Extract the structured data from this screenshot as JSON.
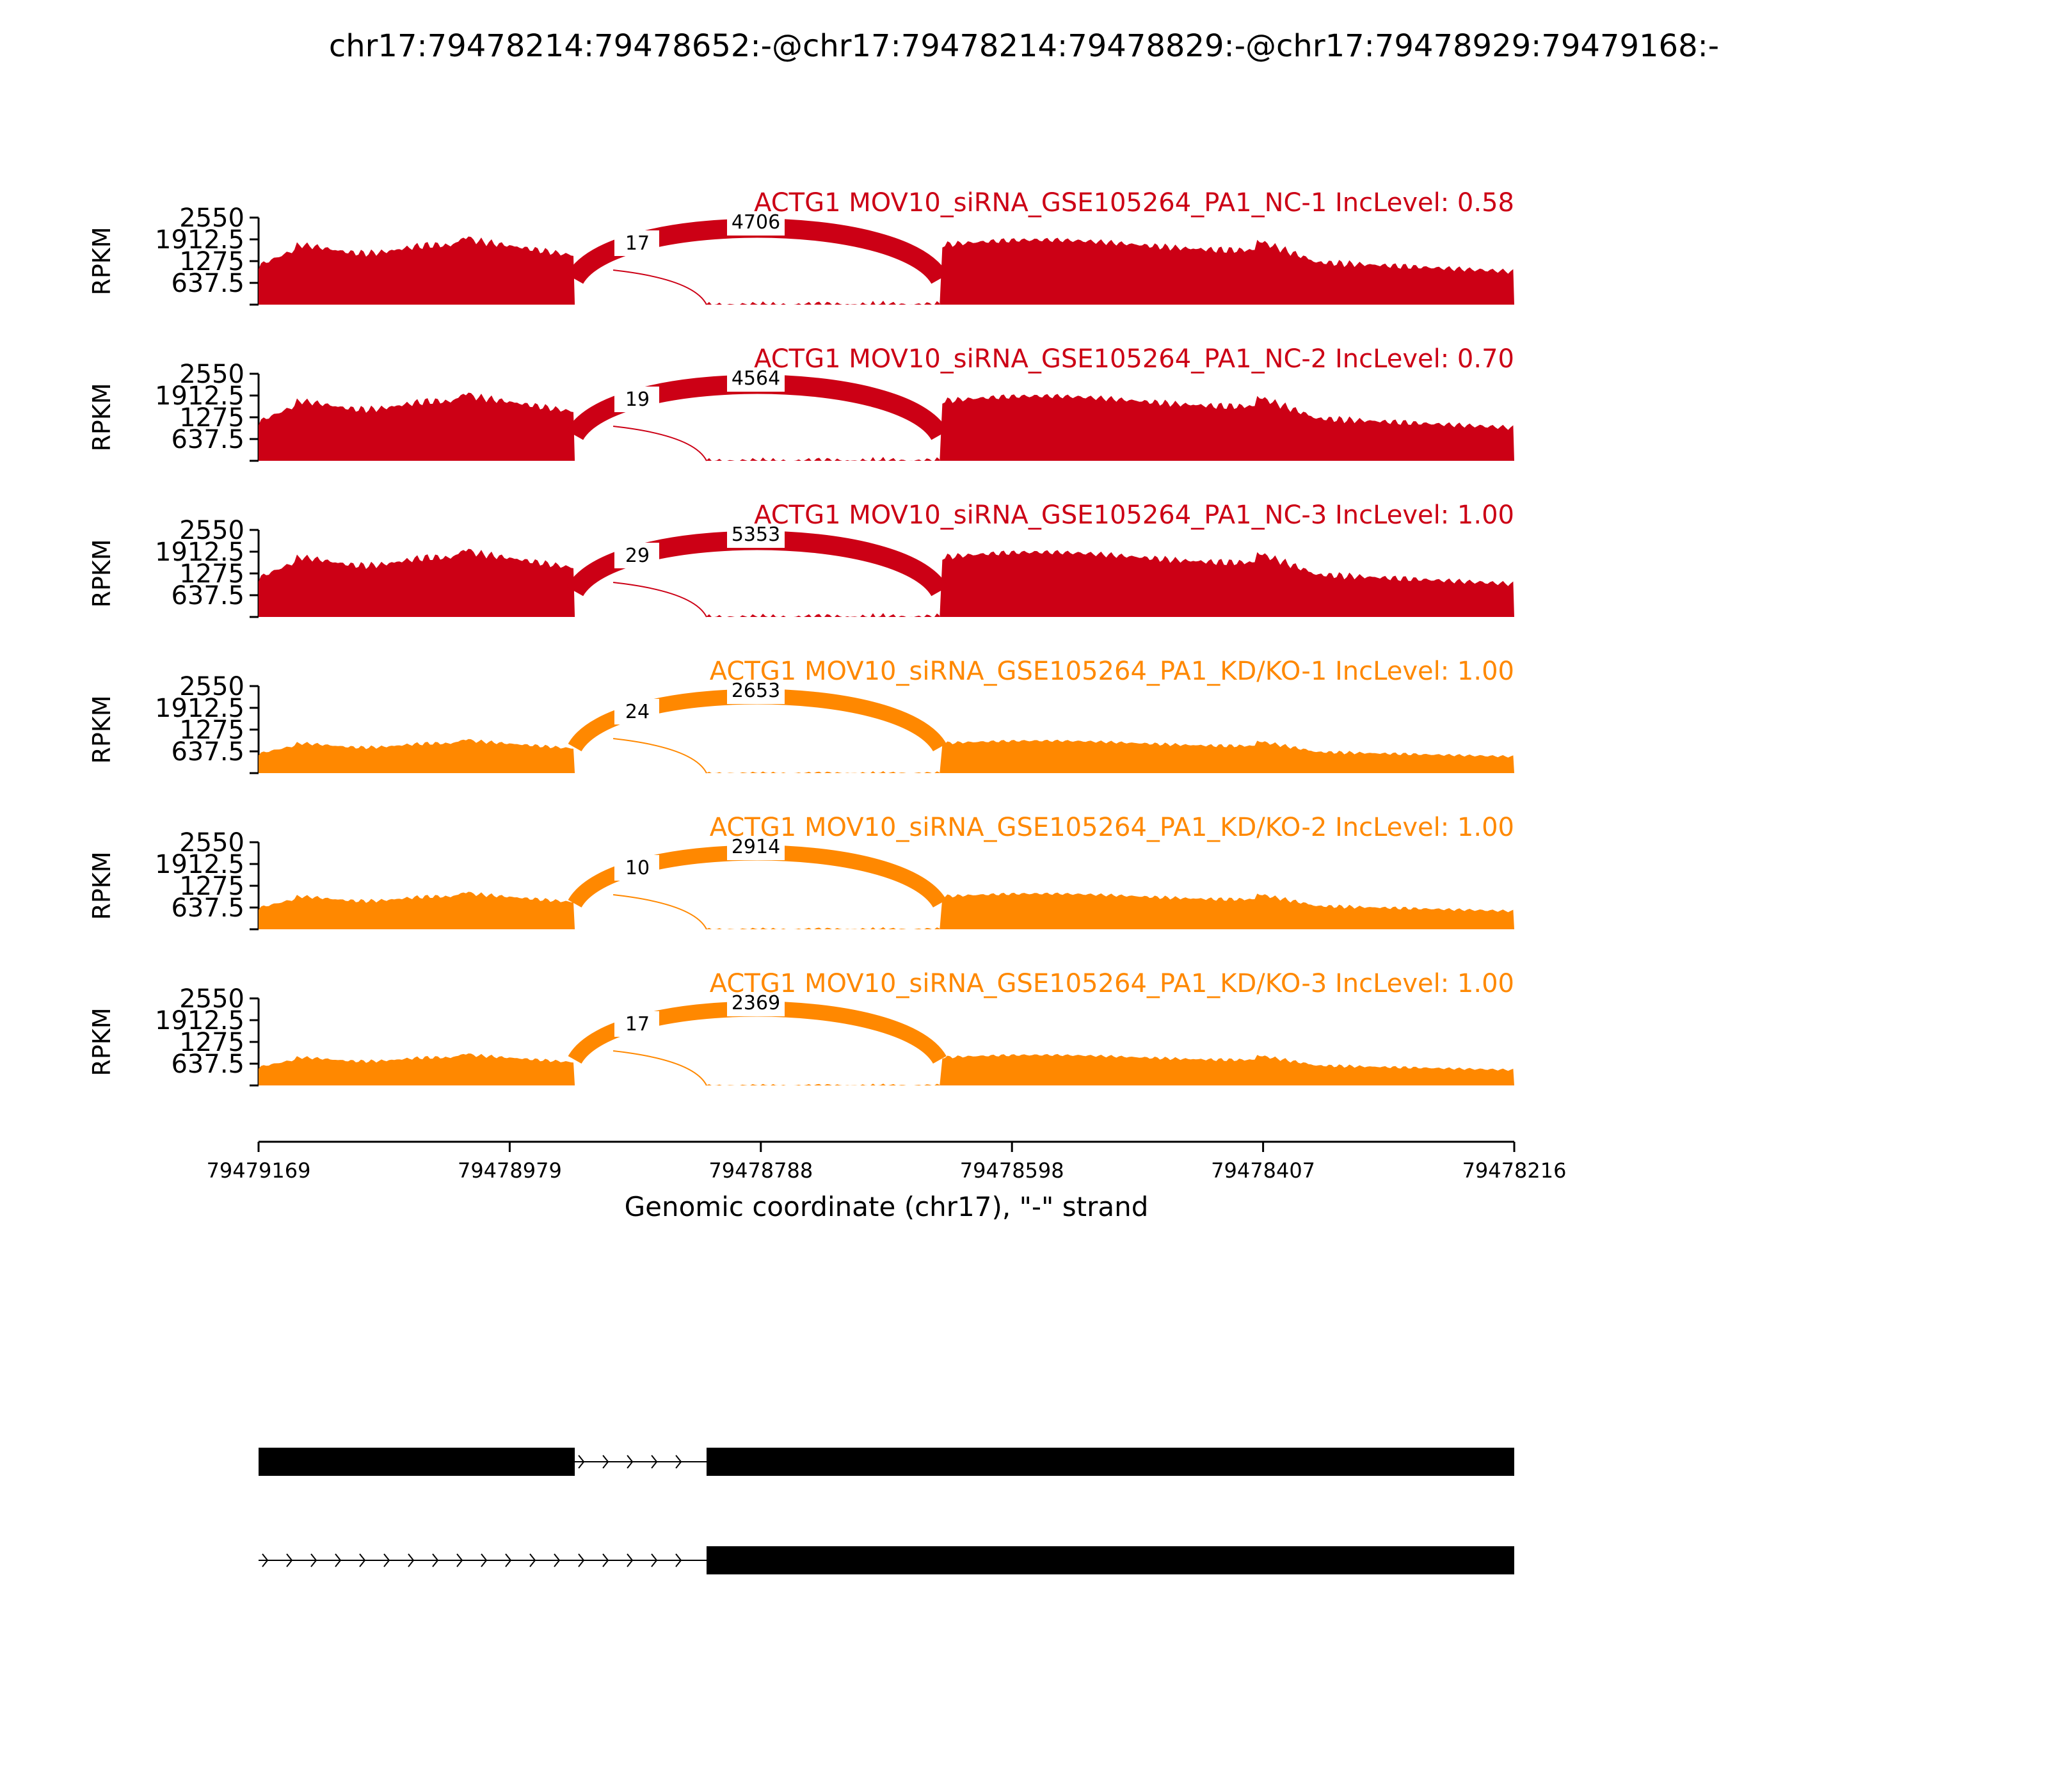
{
  "title": "chr17:79478214:79478652:-@chr17:79478214:79478829:-@chr17:79478929:79479168:-",
  "colors": {
    "nc": "#cc0015",
    "kd": "#ff8800",
    "axis": "#000000",
    "gene_model": "#000000"
  },
  "chart_data": {
    "type": "area",
    "subtype": "sashimi",
    "ylabel": "RPKM",
    "yticks": [
      "637.5",
      "1275",
      "1912.5",
      "2550"
    ],
    "ylim": [
      0,
      2550
    ],
    "xlabel": "Genomic coordinate (chr17), \"-\" strand",
    "xticks": [
      "79479169",
      "79478979",
      "79478788",
      "79478598",
      "79478407",
      "79478216"
    ],
    "xlim": [
      79479169,
      79478216
    ],
    "grid": false,
    "exon_regions_bp": [
      [
        79479169,
        79478929
      ],
      [
        79478829,
        79478652
      ],
      [
        79478652,
        79478216
      ]
    ],
    "series": [
      {
        "name": "ACTG1 MOV10_siRNA_GSE105264_PA1_NC-1 IncLevel: 0.58",
        "group": "nc",
        "coverage_scale": 1.0,
        "junctions": [
          {
            "from": 79478929,
            "to": 79478829,
            "count": "17"
          },
          {
            "from": 79478929,
            "to": 79478652,
            "count": "4706"
          }
        ]
      },
      {
        "name": "ACTG1 MOV10_siRNA_GSE105264_PA1_NC-2 IncLevel: 0.70",
        "group": "nc",
        "coverage_scale": 1.0,
        "junctions": [
          {
            "from": 79478929,
            "to": 79478829,
            "count": "19"
          },
          {
            "from": 79478929,
            "to": 79478652,
            "count": "4564"
          }
        ]
      },
      {
        "name": "ACTG1 MOV10_siRNA_GSE105264_PA1_NC-3 IncLevel: 1.00",
        "group": "nc",
        "coverage_scale": 1.0,
        "junctions": [
          {
            "from": 79478929,
            "to": 79478829,
            "count": "29"
          },
          {
            "from": 79478929,
            "to": 79478652,
            "count": "5353"
          }
        ]
      },
      {
        "name": "ACTG1 MOV10_siRNA_GSE105264_PA1_KD/KO-1 IncLevel: 1.00",
        "group": "kd",
        "coverage_scale": 0.5,
        "junctions": [
          {
            "from": 79478929,
            "to": 79478829,
            "count": "24"
          },
          {
            "from": 79478929,
            "to": 79478652,
            "count": "2653"
          }
        ]
      },
      {
        "name": "ACTG1 MOV10_siRNA_GSE105264_PA1_KD/KO-2 IncLevel: 1.00",
        "group": "kd",
        "coverage_scale": 0.55,
        "junctions": [
          {
            "from": 79478929,
            "to": 79478829,
            "count": "10"
          },
          {
            "from": 79478929,
            "to": 79478652,
            "count": "2914"
          }
        ]
      },
      {
        "name": "ACTG1 MOV10_siRNA_GSE105264_PA1_KD/KO-3 IncLevel: 1.00",
        "group": "kd",
        "coverage_scale": 0.47,
        "junctions": [
          {
            "from": 79478929,
            "to": 79478829,
            "count": "17"
          },
          {
            "from": 79478929,
            "to": 79478652,
            "count": "2369"
          }
        ]
      }
    ],
    "transcripts": [
      {
        "exons": [
          [
            79479169,
            79478929
          ],
          [
            79478829,
            79478216
          ]
        ]
      },
      {
        "exons": [
          [
            79478829,
            79478216
          ]
        ]
      }
    ]
  }
}
